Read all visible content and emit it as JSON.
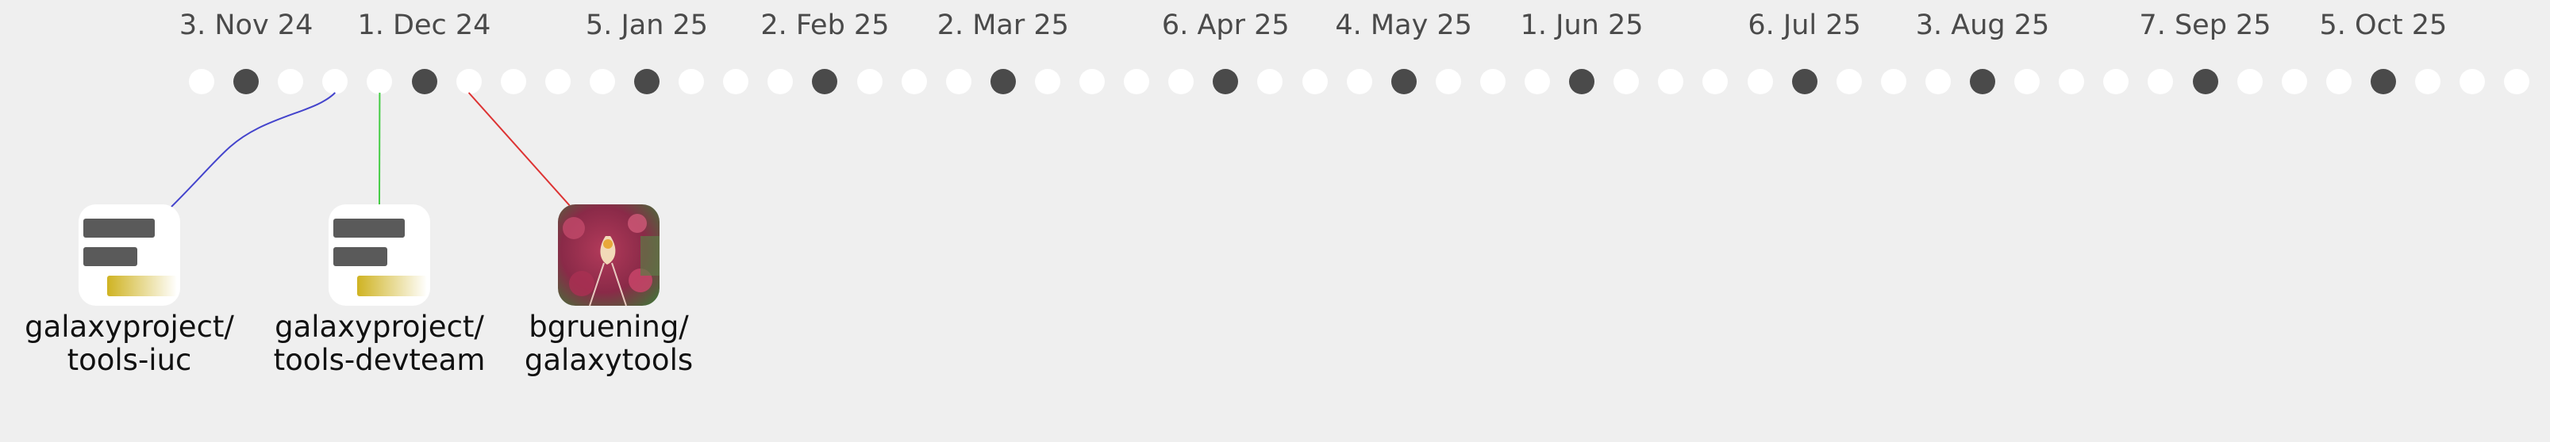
{
  "timeline": {
    "date_labels": [
      "3. Nov 24",
      "1. Dec 24",
      "5. Jan 25",
      "2. Feb 25",
      "2. Mar 25",
      "6. Apr 25",
      "4. May 25",
      "1. Jun 25",
      "6. Jul 25",
      "3. Aug 25",
      "7. Sep 25",
      "5. Oct 25"
    ],
    "dot_count": 53,
    "marked_dots": [
      1,
      5,
      10,
      14,
      18,
      23,
      27,
      31,
      36,
      40,
      45,
      49
    ],
    "colors": {
      "dot": "#ffffff",
      "marked_dot": "#4a4a4a",
      "background": "#efefef"
    }
  },
  "repos": [
    {
      "owner": "galaxyproject/",
      "name": "tools-iuc",
      "avatar": "galaxy-logo-icon",
      "dot_index": 3,
      "connector_color": "#4444cc"
    },
    {
      "owner": "galaxyproject/",
      "name": "tools-devteam",
      "avatar": "galaxy-logo-icon",
      "dot_index": 4,
      "connector_color": "#44cc44"
    },
    {
      "owner": "bgruening/",
      "name": "galaxytools",
      "avatar": "orchid-photo-icon",
      "dot_index": 6,
      "connector_color": "#dd3333"
    }
  ]
}
